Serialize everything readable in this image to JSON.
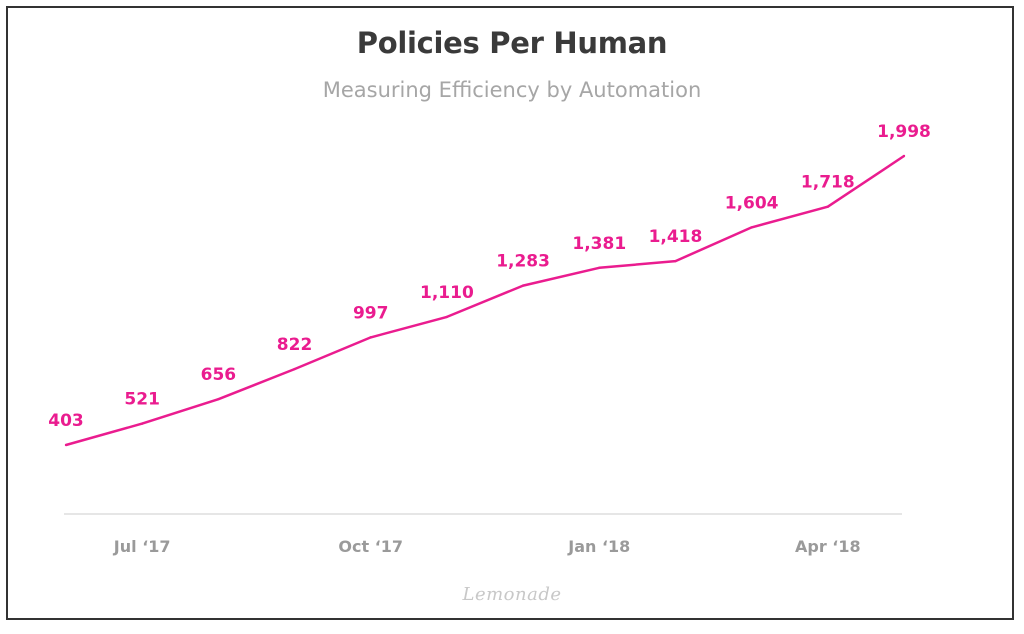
{
  "chart_data": {
    "type": "line",
    "title": "Policies Per Human",
    "subtitle": "Measuring Efficiency by Automation",
    "xlabel": "",
    "ylabel": "",
    "x_tick_labels": [
      "Jul ‘17",
      "Oct ‘17",
      "Jan ‘18",
      "Apr ‘18"
    ],
    "x_tick_indices": [
      1,
      4,
      7,
      10
    ],
    "values": [
      403,
      521,
      656,
      822,
      997,
      1110,
      1283,
      1381,
      1418,
      1604,
      1718,
      1998
    ],
    "value_labels": [
      "403",
      "521",
      "656",
      "822",
      "997",
      "1,110",
      "1,283",
      "1,381",
      "1,418",
      "1,604",
      "1,718",
      "1,998"
    ],
    "ylim": [
      0,
      2000
    ],
    "grid": false,
    "legend": "none",
    "colors": {
      "line": "#ea1c8f",
      "labels": "#ea1c8f",
      "axis": "#dddddd",
      "ticks": "#9a9a9a"
    }
  },
  "watermark": "Lemonade"
}
